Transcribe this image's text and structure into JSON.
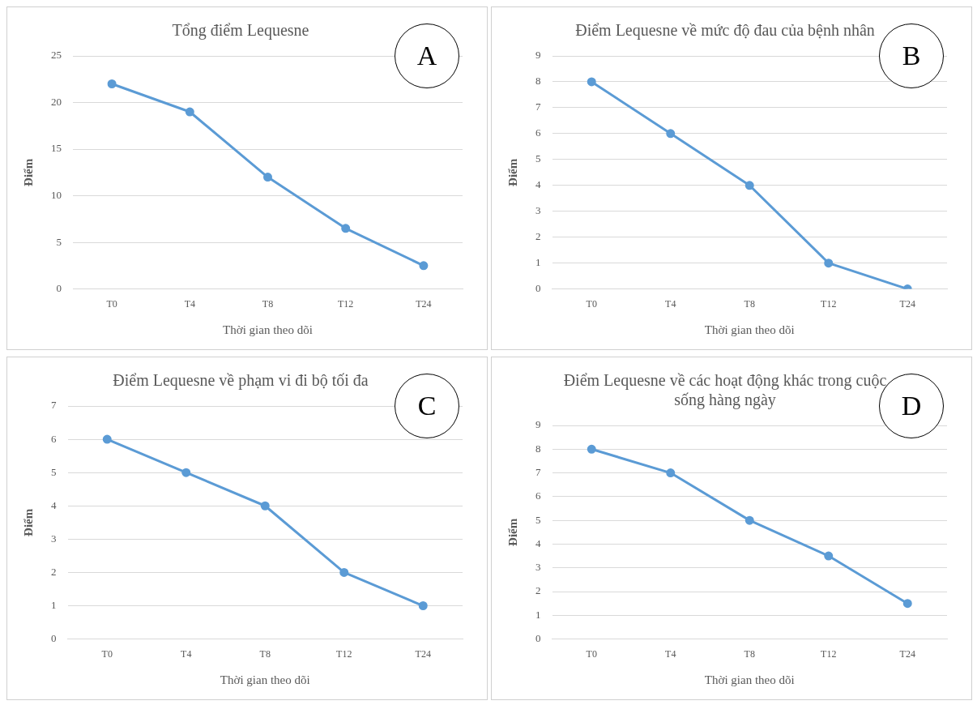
{
  "chart_data": [
    {
      "type": "line",
      "title": "Tổng điểm Lequesne",
      "xlabel": "Thời gian theo dõi",
      "ylabel": "Điểm",
      "annotations": [
        "A"
      ],
      "categories": [
        "T0",
        "T4",
        "T8",
        "T12",
        "T24"
      ],
      "series": [
        {
          "color": "#5b9bd5",
          "values": [
            22,
            19,
            12,
            6.5,
            2.5
          ]
        }
      ],
      "ylim": [
        0,
        25
      ],
      "yticks": [
        0,
        5,
        10,
        15,
        20,
        25
      ],
      "grid": "y",
      "marker": "circle",
      "line_style": "solid",
      "legend": false
    },
    {
      "type": "line",
      "title": "Điểm Lequesne về mức độ đau của bệnh nhân",
      "xlabel": "Thời gian theo dõi",
      "ylabel": "Điểm",
      "annotations": [
        "B"
      ],
      "categories": [
        "T0",
        "T4",
        "T8",
        "T12",
        "T24"
      ],
      "series": [
        {
          "color": "#5b9bd5",
          "values": [
            8,
            6,
            4,
            1,
            0
          ]
        }
      ],
      "ylim": [
        0,
        9
      ],
      "yticks": [
        0,
        1,
        2,
        3,
        4,
        5,
        6,
        7,
        8,
        9
      ],
      "grid": "y",
      "marker": "circle",
      "line_style": "solid",
      "legend": false
    },
    {
      "type": "line",
      "title": "Điểm Lequesne về phạm vi đi bộ tối đa",
      "xlabel": "Thời gian theo dõi",
      "ylabel": "Điểm",
      "annotations": [
        "C"
      ],
      "categories": [
        "T0",
        "T4",
        "T8",
        "T12",
        "T24"
      ],
      "series": [
        {
          "color": "#5b9bd5",
          "values": [
            6,
            5,
            4,
            2,
            1
          ]
        }
      ],
      "ylim": [
        0,
        7
      ],
      "yticks": [
        0,
        1,
        2,
        3,
        4,
        5,
        6,
        7
      ],
      "grid": "y",
      "marker": "circle",
      "line_style": "solid",
      "legend": false
    },
    {
      "type": "line",
      "title": "Điểm Lequesne về các hoạt động khác trong cuộc\nsống hàng ngày",
      "xlabel": "Thời gian theo dõi",
      "ylabel": "Điểm",
      "annotations": [
        "D"
      ],
      "categories": [
        "T0",
        "T4",
        "T8",
        "T12",
        "T24"
      ],
      "series": [
        {
          "color": "#5b9bd5",
          "values": [
            8,
            7,
            5,
            3.5,
            1.5
          ]
        }
      ],
      "ylim": [
        0,
        9
      ],
      "yticks": [
        0,
        1,
        2,
        3,
        4,
        5,
        6,
        7,
        8,
        9
      ],
      "grid": "y",
      "marker": "circle",
      "line_style": "solid",
      "legend": false
    }
  ]
}
